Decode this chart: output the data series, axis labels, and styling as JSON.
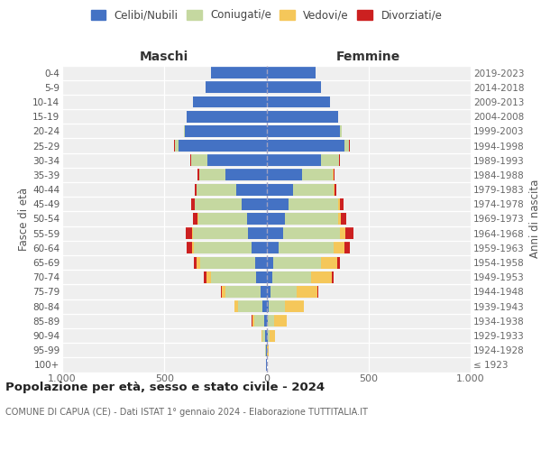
{
  "age_groups": [
    "100+",
    "95-99",
    "90-94",
    "85-89",
    "80-84",
    "75-79",
    "70-74",
    "65-69",
    "60-64",
    "55-59",
    "50-54",
    "45-49",
    "40-44",
    "35-39",
    "30-34",
    "25-29",
    "20-24",
    "15-19",
    "10-14",
    "5-9",
    "0-4"
  ],
  "birth_years": [
    "≤ 1923",
    "1924-1928",
    "1929-1933",
    "1934-1938",
    "1939-1943",
    "1944-1948",
    "1949-1953",
    "1954-1958",
    "1959-1963",
    "1964-1968",
    "1969-1973",
    "1974-1978",
    "1979-1983",
    "1984-1988",
    "1989-1993",
    "1994-1998",
    "1999-2003",
    "2004-2008",
    "2009-2013",
    "2014-2018",
    "2019-2023"
  ],
  "maschi_celibi": [
    2,
    3,
    5,
    10,
    20,
    30,
    50,
    55,
    75,
    90,
    95,
    120,
    150,
    200,
    290,
    430,
    400,
    390,
    360,
    300,
    270
  ],
  "maschi_coniugati": [
    1,
    3,
    15,
    50,
    120,
    170,
    220,
    270,
    280,
    270,
    240,
    230,
    190,
    130,
    80,
    20,
    5,
    2,
    1,
    0,
    0
  ],
  "maschi_vedovi": [
    0,
    1,
    5,
    10,
    15,
    20,
    25,
    15,
    10,
    5,
    3,
    2,
    1,
    1,
    0,
    0,
    0,
    0,
    0,
    0,
    0
  ],
  "maschi_divorziati": [
    0,
    0,
    1,
    2,
    3,
    5,
    10,
    15,
    25,
    30,
    20,
    15,
    10,
    8,
    5,
    2,
    0,
    0,
    0,
    0,
    0
  ],
  "femmine_nubili": [
    2,
    2,
    5,
    8,
    12,
    20,
    30,
    35,
    60,
    80,
    90,
    110,
    130,
    175,
    265,
    380,
    360,
    350,
    310,
    265,
    240
  ],
  "femmine_coniugate": [
    1,
    2,
    10,
    30,
    80,
    130,
    190,
    230,
    270,
    280,
    260,
    240,
    200,
    150,
    90,
    25,
    10,
    3,
    1,
    0,
    0
  ],
  "femmine_vedove": [
    1,
    5,
    25,
    60,
    90,
    100,
    100,
    80,
    50,
    25,
    15,
    8,
    3,
    2,
    1,
    1,
    0,
    0,
    0,
    0,
    0
  ],
  "femmine_divorziate": [
    0,
    0,
    1,
    2,
    3,
    5,
    10,
    15,
    30,
    40,
    25,
    20,
    10,
    8,
    5,
    2,
    0,
    0,
    0,
    0,
    0
  ],
  "color_celibi": "#4472C4",
  "color_coniugati": "#C5D8A0",
  "color_vedovi": "#F5C75A",
  "color_divorziati": "#CC2020",
  "xlim": 1000,
  "title": "Popolazione per età, sesso e stato civile - 2024",
  "subtitle": "COMUNE DI CAPUA (CE) - Dati ISTAT 1° gennaio 2024 - Elaborazione TUTTITALIA.IT",
  "ylabel_left": "Fasce di età",
  "ylabel_right": "Anni di nascita",
  "label_maschi": "Maschi",
  "label_femmine": "Femmine",
  "legend_labels": [
    "Celibi/Nubili",
    "Coniugati/e",
    "Vedovi/e",
    "Divorziati/e"
  ],
  "xtick_vals": [
    -1000,
    -500,
    0,
    500,
    1000
  ],
  "xtick_labels": [
    "1.000",
    "500",
    "0",
    "500",
    "1.000"
  ],
  "bg_color": "#ffffff",
  "plot_bg": "#efefef"
}
